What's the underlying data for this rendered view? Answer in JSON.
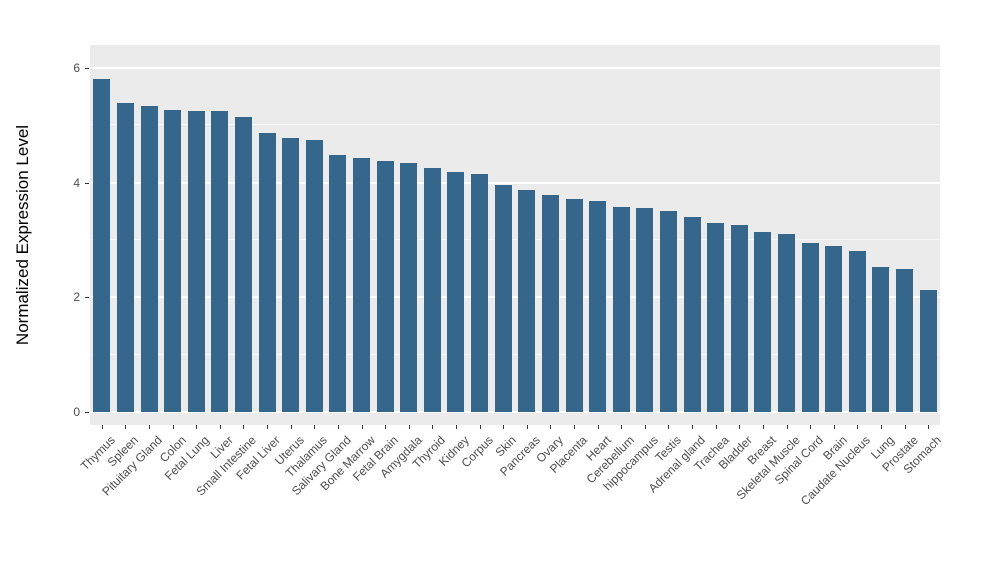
{
  "chart_data": {
    "type": "bar",
    "title": "",
    "xlabel": "",
    "ylabel": "Normalized Expression Level",
    "ylim": [
      0,
      6
    ],
    "yticks": [
      0,
      2,
      4,
      6
    ],
    "yticks_minor": [
      1,
      3,
      5
    ],
    "grid": "on",
    "legend_position": "none",
    "bar_color": "#35678d",
    "plot_background": "#ebebeb",
    "categories": [
      "Thymus",
      "Spleen",
      "Pituitary Gland",
      "Colon",
      "Fetal Lung",
      "Liver",
      "Small Intestine",
      "Fetal Liver",
      "Uterus",
      "Thalamus",
      "Salivary Gland",
      "Bone Marrow",
      "Fetal Brain",
      "Amygdala",
      "Thyroid",
      "Kidney",
      "Corpus",
      "Skin",
      "Pancreas",
      "Ovary",
      "Placenta",
      "Heart",
      "Cerebellum",
      "hippocampus",
      "Testis",
      "Adrenal gland",
      "Trachea",
      "Bladder",
      "Breast",
      "Skeletal Muscle",
      "Spinal Cord",
      "Brain",
      "Caudate Nucleus",
      "Lung",
      "Prostate",
      "Stomach"
    ],
    "values": [
      5.81,
      5.39,
      5.34,
      5.27,
      5.25,
      5.25,
      5.15,
      4.87,
      4.78,
      4.75,
      4.48,
      4.43,
      4.38,
      4.35,
      4.26,
      4.19,
      4.15,
      3.96,
      3.87,
      3.79,
      3.72,
      3.68,
      3.58,
      3.56,
      3.51,
      3.4,
      3.3,
      3.26,
      3.14,
      3.11,
      2.95,
      2.9,
      2.81,
      2.53,
      2.5,
      2.13
    ]
  }
}
